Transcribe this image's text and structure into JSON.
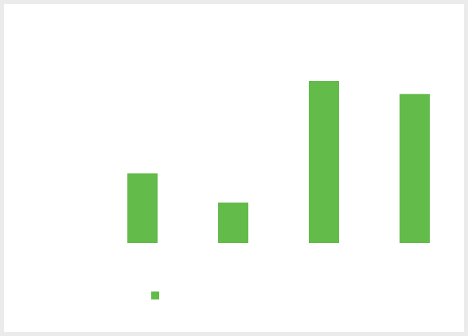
{
  "chart_data": {
    "type": "bar",
    "categories": [
      "",
      "",
      "",
      ""
    ],
    "series": [
      {
        "values": [
          43,
          25,
          100,
          92
        ]
      }
    ],
    "title": "",
    "xlabel": "",
    "ylabel": "",
    "ylim": [
      0,
      100
    ],
    "grid": false,
    "legend": "bottom-left"
  },
  "colors": {
    "bar": "#63bb4a"
  }
}
